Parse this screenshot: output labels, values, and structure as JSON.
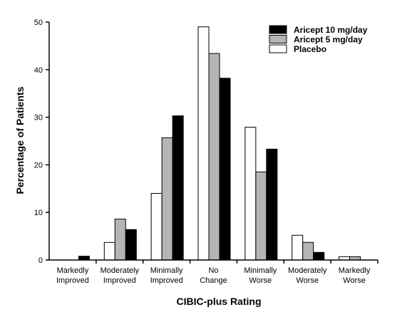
{
  "chart_data": {
    "type": "bar",
    "xlabel": "CIBIC-plus Rating",
    "ylabel": "Percentage of Patients",
    "ylim": [
      0,
      50
    ],
    "yticks": [
      0,
      10,
      20,
      30,
      40,
      50
    ],
    "categories": [
      [
        "Markedly",
        "Improved"
      ],
      [
        "Moderately",
        "Improved"
      ],
      [
        "Minimally",
        "Improved"
      ],
      [
        "No",
        "Change"
      ],
      [
        "Minimally",
        "Worse"
      ],
      [
        "Moderately",
        "Worse"
      ],
      [
        "Markedly",
        "Worse"
      ]
    ],
    "series": [
      {
        "name": "Placebo",
        "color": "#ffffff",
        "values": [
          0,
          3.7,
          14,
          49,
          27.9,
          5.2,
          0.7
        ]
      },
      {
        "name": "Aricept 5 mg/day",
        "color": "#b5b5b5",
        "values": [
          0,
          8.6,
          25.7,
          43.4,
          18.5,
          3.7,
          0.7
        ]
      },
      {
        "name": "Aricept 10 mg/day",
        "color": "#000000",
        "values": [
          0.8,
          6.4,
          30.3,
          38.2,
          23.3,
          1.6,
          0
        ]
      }
    ],
    "legend": {
      "placement": "top-right",
      "order": [
        "Aricept 10 mg/day",
        "Aricept 5 mg/day",
        "Placebo"
      ]
    },
    "grid": false
  }
}
